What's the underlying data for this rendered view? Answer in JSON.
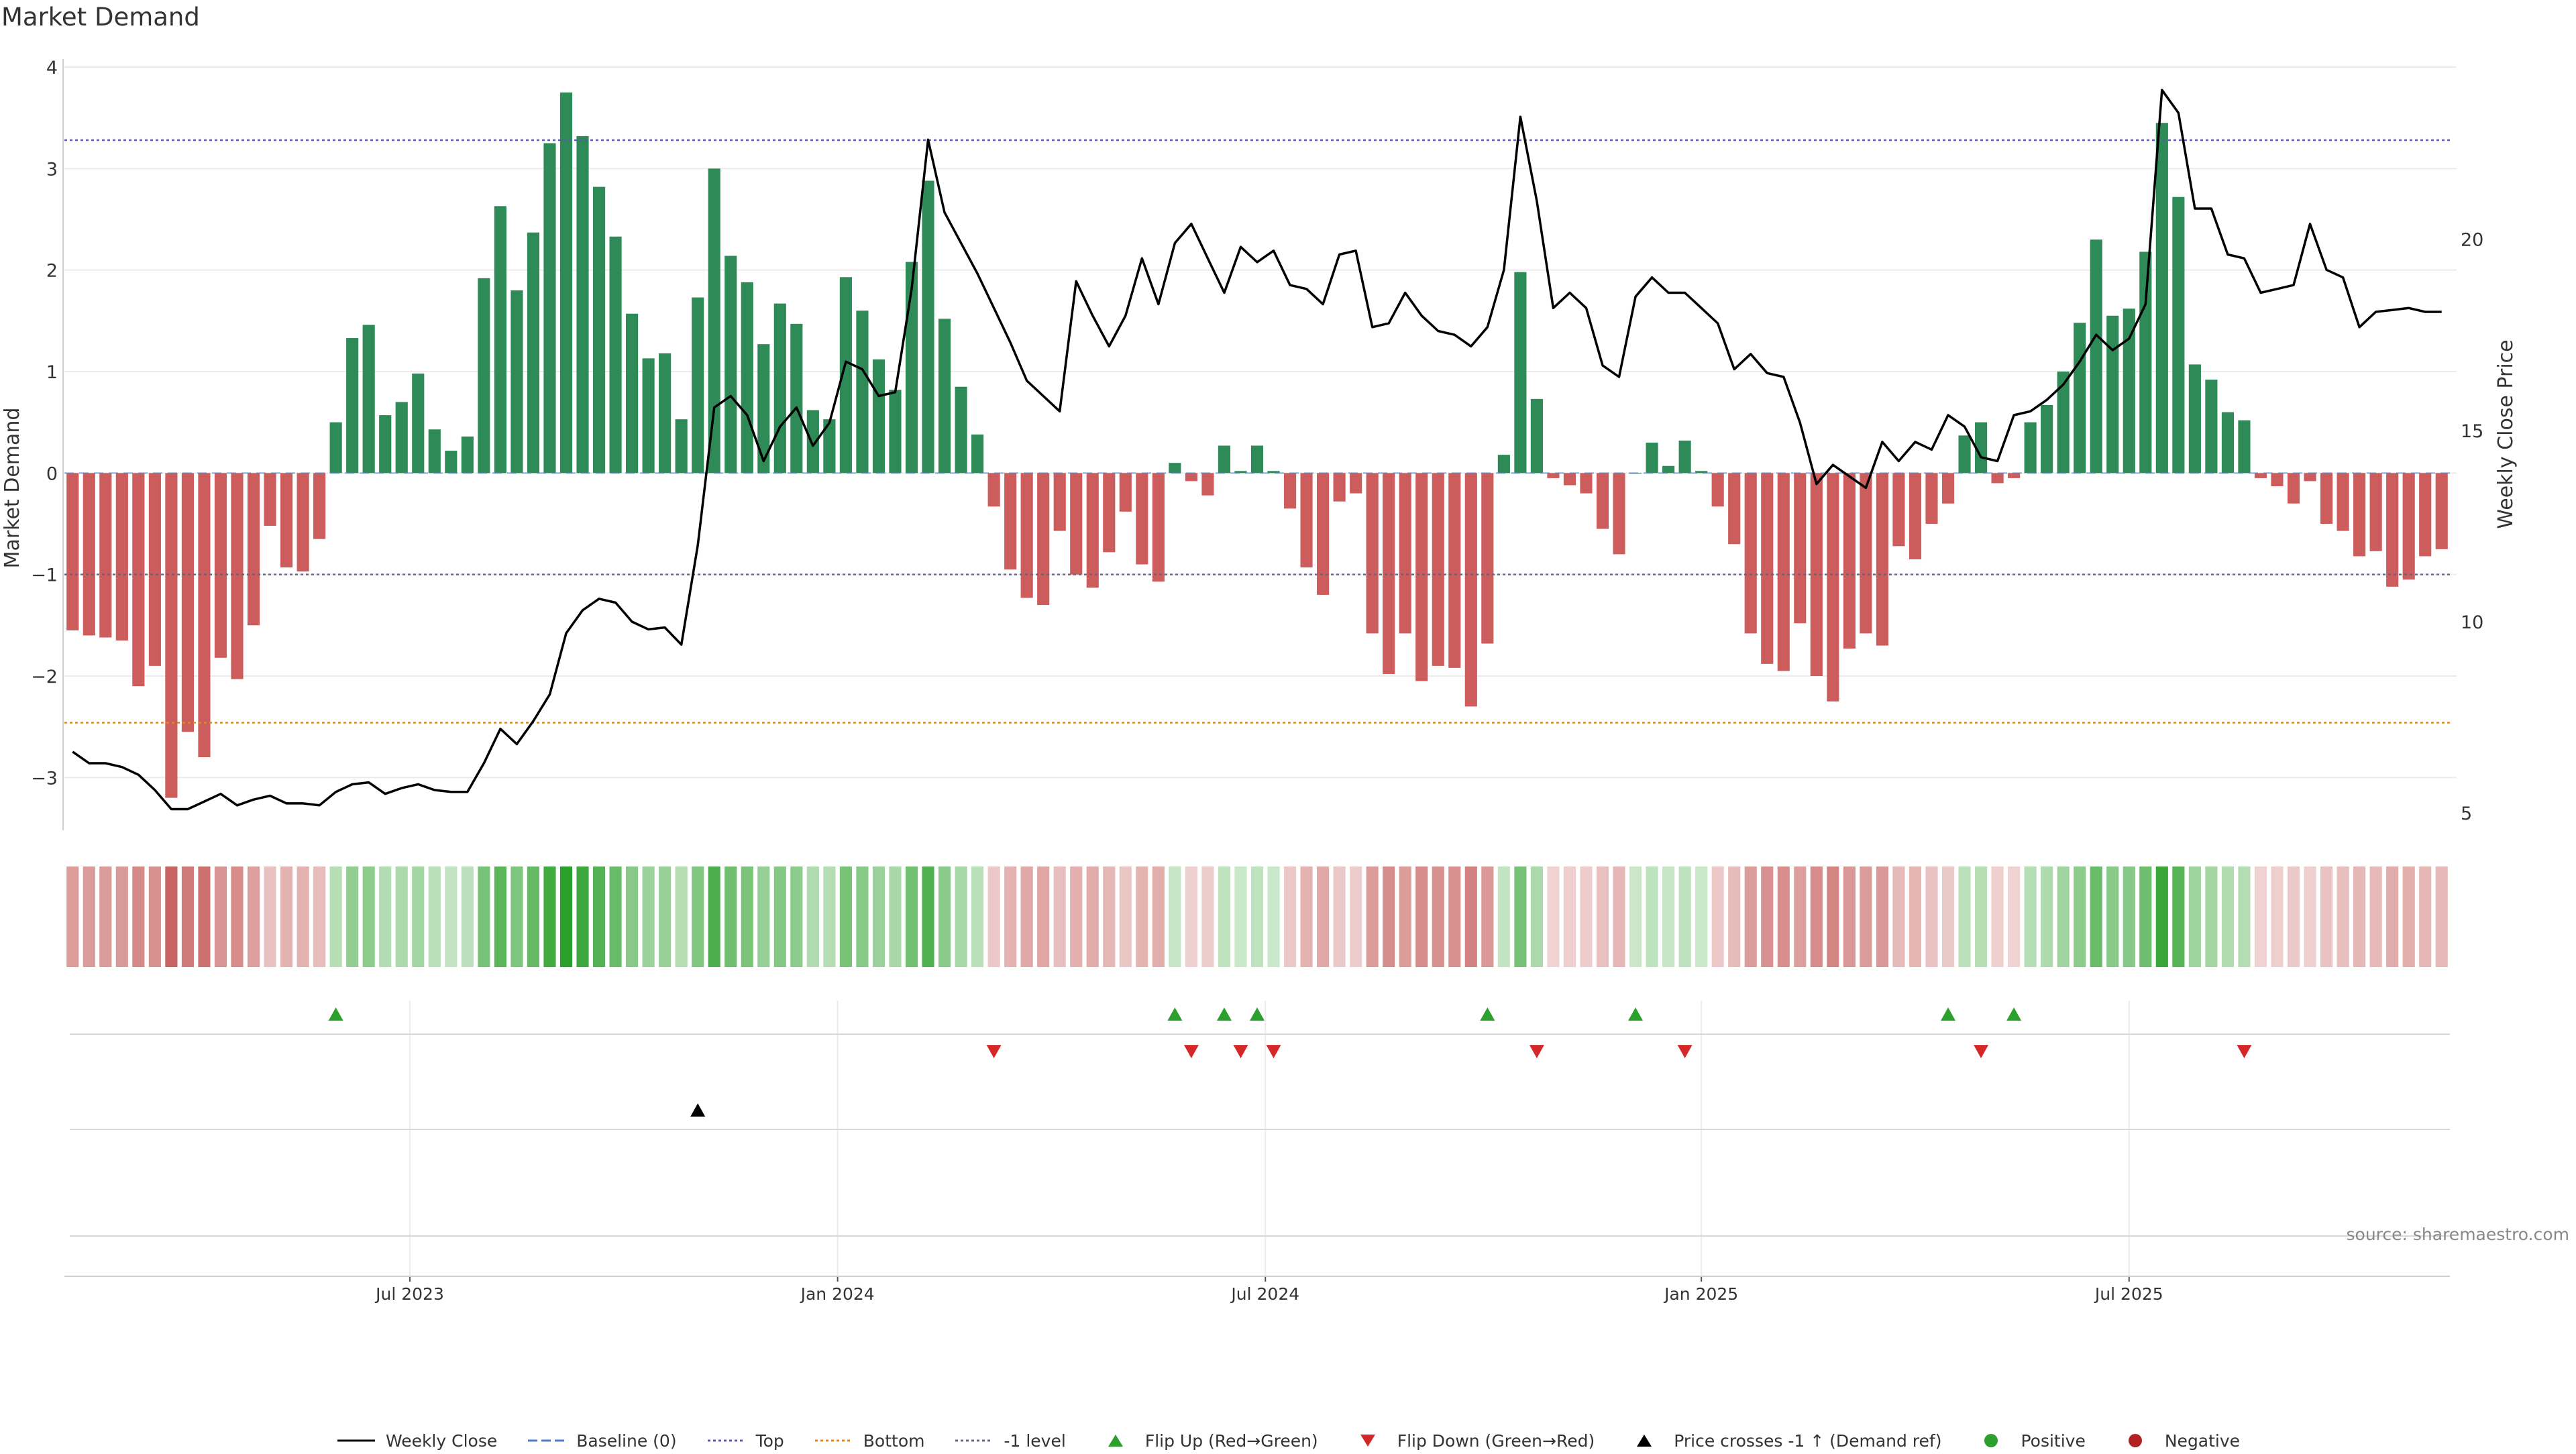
{
  "title": "Market Demand",
  "source": "source: sharemaestro.com",
  "colors": {
    "positive": "#2e8b57",
    "negative": "#cd5c5c",
    "price": "#000000",
    "top": "#5b5bb5",
    "bottom": "#e08a1e",
    "minus1": "#666688",
    "baseline": "#4a7fc0",
    "flip_up": "#2ca02c",
    "flip_down": "#d62728",
    "cross": "#000000",
    "positive_dot": "#2ca02c",
    "negative_dot": "#b22222"
  },
  "legend": [
    {
      "label": "Weekly Close",
      "style": "line-solid",
      "color": "#000000"
    },
    {
      "label": "Baseline (0)",
      "style": "line-dashed",
      "color": "#4a7fc0"
    },
    {
      "label": "Top",
      "style": "line-dotted",
      "color": "#5b5bb5"
    },
    {
      "label": "Bottom",
      "style": "line-dotted",
      "color": "#e08a1e"
    },
    {
      "label": "-1 level",
      "style": "line-dotted",
      "color": "#666688"
    },
    {
      "label": "Flip Up (Red→Green)",
      "style": "tri-up",
      "color": "#2ca02c"
    },
    {
      "label": "Flip Down (Green→Red)",
      "style": "tri-down",
      "color": "#d62728"
    },
    {
      "label": "Price crosses -1 ↑ (Demand ref)",
      "style": "tri-up",
      "color": "#000000"
    },
    {
      "label": "Positive",
      "style": "dot",
      "color": "#2ca02c"
    },
    {
      "label": "Negative",
      "style": "dot",
      "color": "#b22222"
    }
  ],
  "chart_data": {
    "type": "bar",
    "title": "Market Demand",
    "ylabel": "Market Demand",
    "y2label": "Weekly Close Price",
    "ylim": [
      -3.5,
      4.0
    ],
    "y_ticks": [
      4,
      3,
      2,
      1,
      0,
      -1,
      -2,
      -3
    ],
    "y_tick_labels": [
      "4",
      "3",
      "2",
      "1",
      "0",
      "−1",
      "−2",
      "−3"
    ],
    "y2lim": [
      4.6,
      24.5
    ],
    "y2_ticks": [
      20,
      15,
      10,
      5
    ],
    "x_ticks": [
      {
        "label": "Jul 2023",
        "index": 21
      },
      {
        "label": "Jan 2024",
        "index": 47
      },
      {
        "label": "Jul 2024",
        "index": 73
      },
      {
        "label": "Jan 2025",
        "index": 99.5
      },
      {
        "label": "Jul 2025",
        "index": 125.5
      }
    ],
    "reference_lines": {
      "top": 3.28,
      "bottom": -2.46,
      "minus1": -1.0,
      "baseline": 0
    },
    "series": [
      {
        "name": "Market Demand",
        "kind": "bar",
        "values": [
          -1.55,
          -1.6,
          -1.62,
          -1.65,
          -2.1,
          -1.9,
          -3.2,
          -2.55,
          -2.8,
          -1.82,
          -2.03,
          -1.5,
          -0.52,
          -0.93,
          -0.97,
          -0.65,
          0.5,
          1.33,
          1.46,
          0.57,
          0.7,
          0.98,
          0.43,
          0.22,
          0.36,
          1.92,
          2.63,
          1.8,
          2.37,
          3.25,
          3.75,
          3.32,
          2.82,
          2.33,
          1.57,
          1.13,
          1.18,
          0.53,
          1.73,
          3.0,
          2.14,
          1.88,
          1.27,
          1.67,
          1.47,
          0.62,
          0.53,
          1.93,
          1.6,
          1.12,
          0.82,
          2.08,
          2.88,
          1.52,
          0.85,
          0.38,
          -0.33,
          -0.95,
          -1.23,
          -1.3,
          -0.57,
          -1.0,
          -1.13,
          -0.78,
          -0.38,
          -0.9,
          -1.07,
          0.1,
          -0.08,
          -0.22,
          0.27,
          0.02,
          0.27,
          0.02,
          -0.35,
          -0.93,
          -1.2,
          -0.28,
          -0.2,
          -1.58,
          -1.98,
          -1.58,
          -2.05,
          -1.9,
          -1.92,
          -2.3,
          -1.68,
          0.18,
          1.98,
          0.73,
          -0.05,
          -0.12,
          -0.2,
          -0.55,
          -0.8,
          0.0,
          0.3,
          0.07,
          0.32,
          0.02,
          -0.33,
          -0.7,
          -1.58,
          -1.88,
          -1.95,
          -1.48,
          -2.0,
          -2.25,
          -1.73,
          -1.58,
          -1.7,
          -0.72,
          -0.85,
          -0.5,
          -0.3,
          0.37,
          0.5,
          -0.1,
          -0.05,
          0.5,
          0.67,
          1.0,
          1.48,
          2.3,
          1.55,
          1.62,
          2.18,
          3.45,
          2.72,
          1.07,
          0.92,
          0.6,
          0.52,
          -0.05,
          -0.13,
          -0.3,
          -0.08,
          -0.5,
          -0.57,
          -0.82,
          -0.77,
          -1.12,
          -1.05,
          -0.82,
          -0.75
        ]
      },
      {
        "name": "Weekly Close",
        "kind": "line",
        "values": [
          6.6,
          6.3,
          6.3,
          6.2,
          6.0,
          5.6,
          5.1,
          5.1,
          5.3,
          5.5,
          5.2,
          5.35,
          5.45,
          5.25,
          5.25,
          5.2,
          5.55,
          5.75,
          5.8,
          5.5,
          5.65,
          5.75,
          5.6,
          5.55,
          5.55,
          6.3,
          7.2,
          6.8,
          7.4,
          8.1,
          9.7,
          10.3,
          10.6,
          10.5,
          10.0,
          9.8,
          9.85,
          9.4,
          12.0,
          15.6,
          15.9,
          15.4,
          14.2,
          15.1,
          15.6,
          14.6,
          15.2,
          16.8,
          16.6,
          15.9,
          16.0,
          18.7,
          22.6,
          20.7,
          19.9,
          19.1,
          18.2,
          17.3,
          16.3,
          15.9,
          15.5,
          18.9,
          18.0,
          17.2,
          18.0,
          19.5,
          18.3,
          19.9,
          20.4,
          19.5,
          18.6,
          19.8,
          19.4,
          19.7,
          18.8,
          18.7,
          18.3,
          19.6,
          19.7,
          17.7,
          17.8,
          18.6,
          18.0,
          17.6,
          17.5,
          17.2,
          17.7,
          19.2,
          23.2,
          21.0,
          18.2,
          18.6,
          18.2,
          16.7,
          16.4,
          18.5,
          19.0,
          18.6,
          18.6,
          18.2,
          17.8,
          16.6,
          17.0,
          16.5,
          16.4,
          15.2,
          13.6,
          14.1,
          13.8,
          13.5,
          14.7,
          14.2,
          14.7,
          14.5,
          15.4,
          15.1,
          14.3,
          14.2,
          15.4,
          15.5,
          15.8,
          16.2,
          16.8,
          17.5,
          17.1,
          17.4,
          18.3,
          23.9,
          23.3,
          20.8,
          20.8,
          19.6,
          19.5,
          18.6,
          18.7,
          18.8,
          20.4,
          19.2,
          19.0,
          17.7,
          18.1,
          18.15,
          18.2,
          18.1,
          18.1
        ]
      }
    ],
    "flip_up_indices": [
      16,
      67,
      70,
      72,
      86,
      95,
      114,
      118
    ],
    "flip_down_indices": [
      56,
      68,
      71,
      73,
      89,
      98,
      116,
      132
    ],
    "price_cross_up_indices": [
      38
    ]
  }
}
